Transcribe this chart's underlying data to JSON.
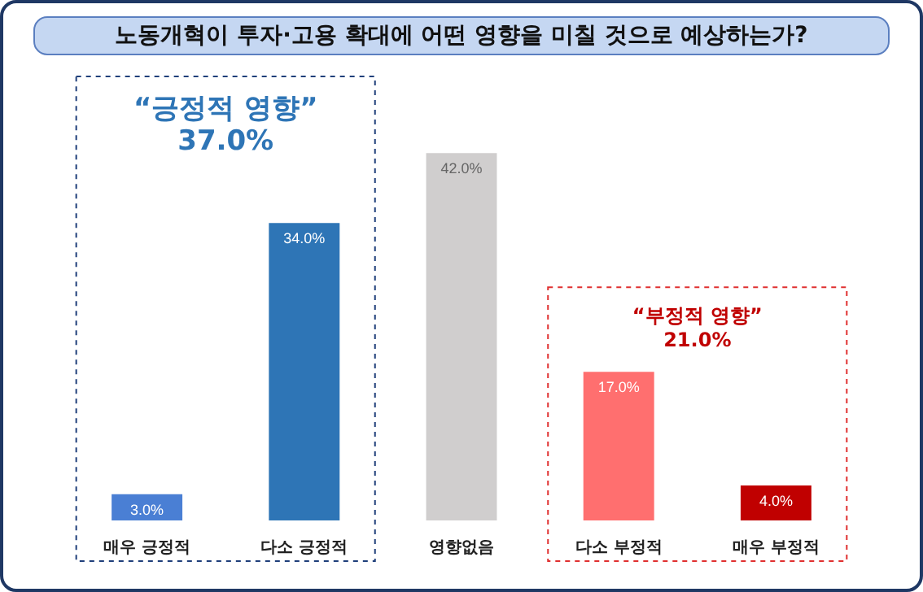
{
  "chart_data": {
    "type": "bar",
    "title": "노동개혁이 투자·고용 확대에 어떤 영향을 미칠 것으로 예상하는가?",
    "categories": [
      "매우 긍정적",
      "다소 긍정적",
      "영향없음",
      "다소 부정적",
      "매우 부정적"
    ],
    "values": [
      3.0,
      34.0,
      42.0,
      17.0,
      4.0
    ],
    "colors": [
      "#4a7fd4",
      "#2e75b6",
      "#d0cece",
      "#ff6f6f",
      "#c00000"
    ],
    "value_labels": [
      "3.0%",
      "34.0%",
      "42.0%",
      "17.0%",
      "4.0%"
    ],
    "annotations": [
      "“긍정적 영향”\n37.0%",
      "“부정적 영향”\n21.0%"
    ]
  }
}
